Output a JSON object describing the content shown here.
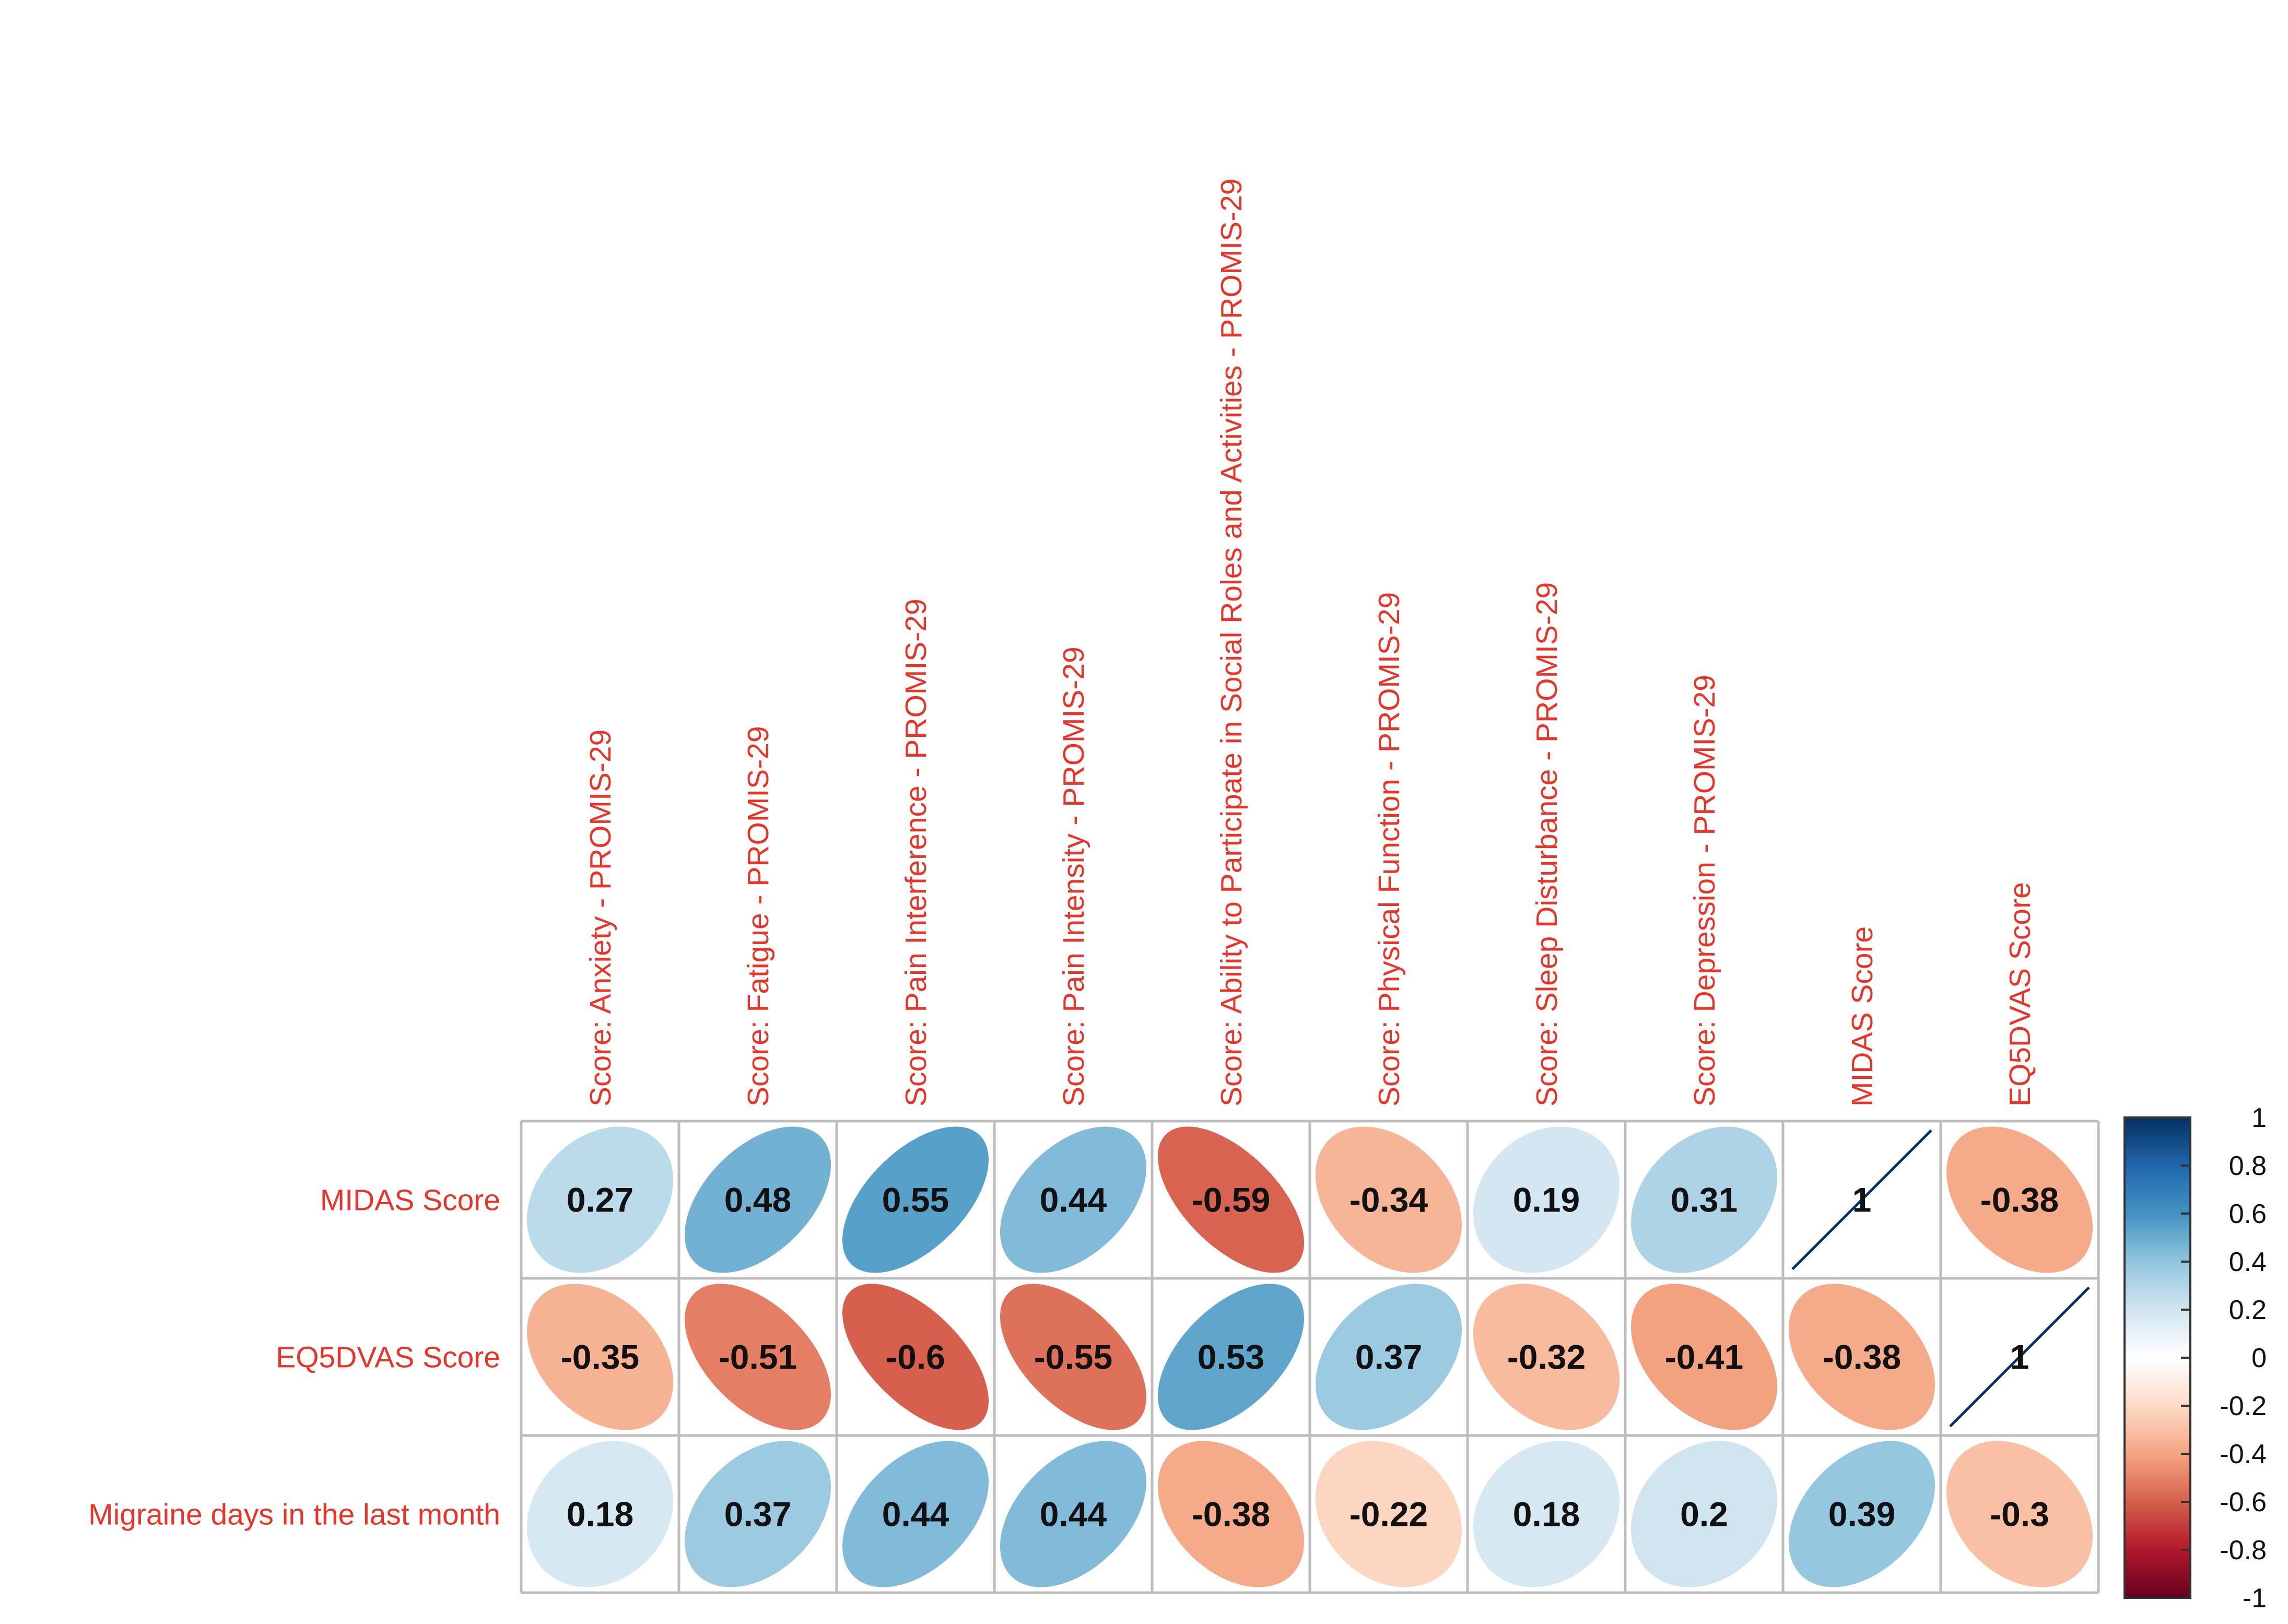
{
  "chart_data": {
    "type": "heatmap",
    "style": "correlation ellipse matrix",
    "columns": [
      "Score: Anxiety - PROMIS-29",
      "Score: Fatigue - PROMIS-29",
      "Score: Pain Interference - PROMIS-29",
      "Score: Pain Intensity - PROMIS-29",
      "Score: Ability to Participate in Social Roles and Activities - PROMIS-29",
      "Score: Physical Function - PROMIS-29",
      "Score: Sleep Disturbance - PROMIS-29",
      "Score: Depression - PROMIS-29",
      "MIDAS Score",
      "EQ5DVAS Score"
    ],
    "rows": [
      "MIDAS Score",
      "EQ5DVAS Score",
      "Migraine days in the last month"
    ],
    "values": [
      [
        0.27,
        0.48,
        0.55,
        0.44,
        -0.59,
        -0.34,
        0.19,
        0.31,
        1,
        -0.38
      ],
      [
        -0.35,
        -0.51,
        -0.6,
        -0.55,
        0.53,
        0.37,
        -0.32,
        -0.41,
        -0.38,
        1
      ],
      [
        0.18,
        0.37,
        0.44,
        0.44,
        -0.38,
        -0.22,
        0.18,
        0.2,
        0.39,
        -0.3
      ]
    ],
    "value_labels": [
      [
        "0.27",
        "0.48",
        "0.55",
        "0.44",
        "-0.59",
        "-0.34",
        "0.19",
        "0.31",
        "1",
        "-0.38"
      ],
      [
        "-0.35",
        "-0.51",
        "-0.6",
        "-0.55",
        "0.53",
        "0.37",
        "-0.32",
        "-0.41",
        "-0.38",
        "1"
      ],
      [
        "0.18",
        "0.37",
        "0.44",
        "0.44",
        "-0.38",
        "-0.22",
        "0.18",
        "0.2",
        "0.39",
        "-0.3"
      ]
    ],
    "colorbar": {
      "range": [
        -1,
        1
      ],
      "ticks": [
        "1",
        "0.8",
        "0.6",
        "0.4",
        "0.2",
        "0",
        "-0.2",
        "-0.4",
        "-0.6",
        "-0.8",
        "-1"
      ],
      "low_color": "#67001f",
      "mid_color": "#ffffff",
      "high_color": "#053061"
    },
    "label_color": "#e8352a",
    "grid": true,
    "legend": "right"
  }
}
